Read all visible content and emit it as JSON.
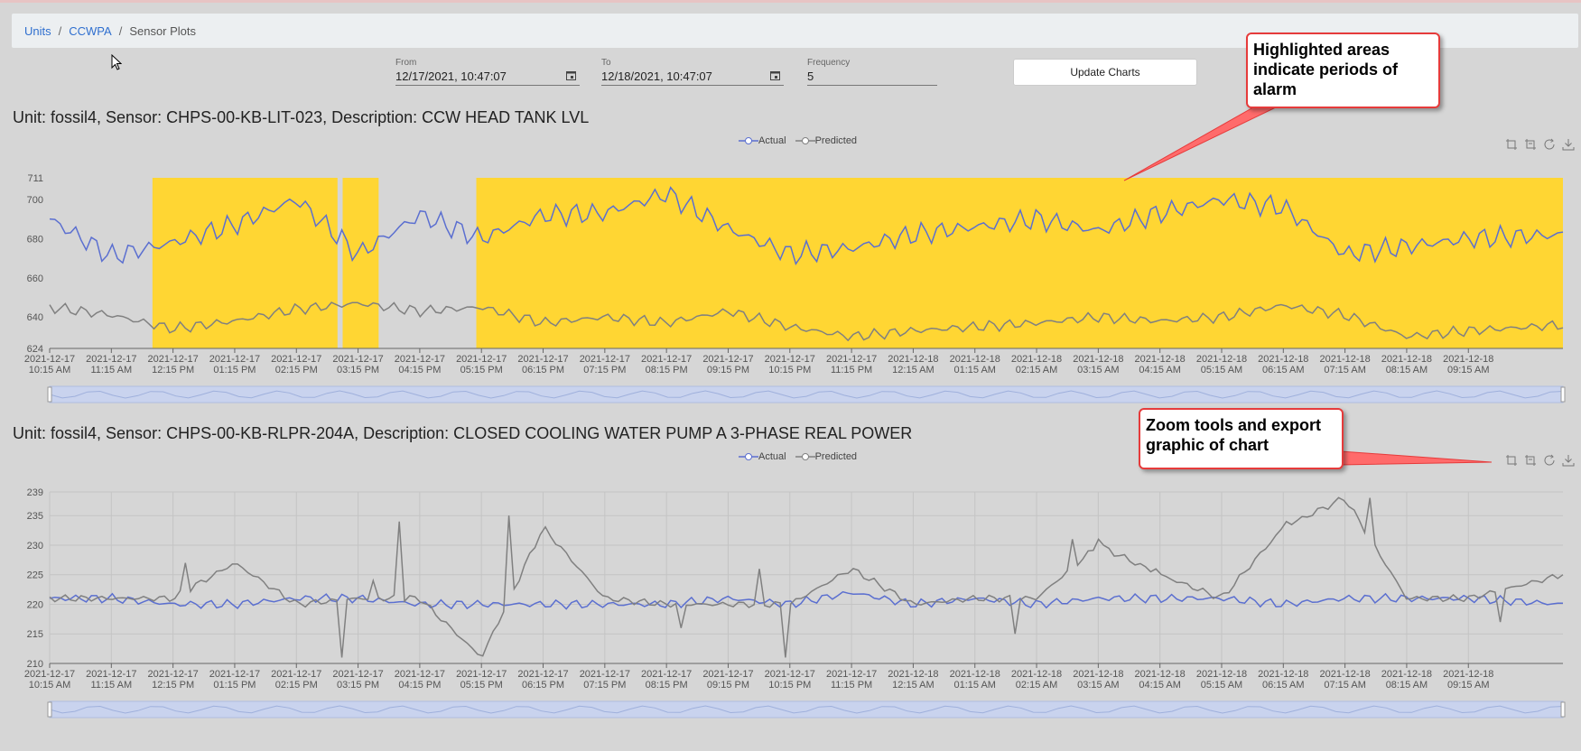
{
  "breadcrumb": {
    "items": [
      "Units",
      "CCWPA"
    ],
    "current": "Sensor Plots"
  },
  "filters": {
    "from_label": "From",
    "from_value": "12/17/2021, 10:47:07",
    "to_label": "To",
    "to_value": "12/18/2021, 10:47:07",
    "frequency_label": "Frequency",
    "frequency_value": "5",
    "update_label": "Update Charts"
  },
  "legend": {
    "actual": "Actual",
    "predicted": "Predicted"
  },
  "colors": {
    "actual": "#5b6fd0",
    "predicted": "#808080",
    "alarm": "#ffd633",
    "callout_border": "#e63b3b"
  },
  "x_tick_labels": [
    [
      "2021-12-17",
      "10:15 AM"
    ],
    [
      "2021-12-17",
      "11:15 AM"
    ],
    [
      "2021-12-17",
      "12:15 PM"
    ],
    [
      "2021-12-17",
      "01:15 PM"
    ],
    [
      "2021-12-17",
      "02:15 PM"
    ],
    [
      "2021-12-17",
      "03:15 PM"
    ],
    [
      "2021-12-17",
      "04:15 PM"
    ],
    [
      "2021-12-17",
      "05:15 PM"
    ],
    [
      "2021-12-17",
      "06:15 PM"
    ],
    [
      "2021-12-17",
      "07:15 PM"
    ],
    [
      "2021-12-17",
      "08:15 PM"
    ],
    [
      "2021-12-17",
      "09:15 PM"
    ],
    [
      "2021-12-17",
      "10:15 PM"
    ],
    [
      "2021-12-17",
      "11:15 PM"
    ],
    [
      "2021-12-18",
      "12:15 AM"
    ],
    [
      "2021-12-18",
      "01:15 AM"
    ],
    [
      "2021-12-18",
      "02:15 AM"
    ],
    [
      "2021-12-18",
      "03:15 AM"
    ],
    [
      "2021-12-18",
      "04:15 AM"
    ],
    [
      "2021-12-18",
      "05:15 AM"
    ],
    [
      "2021-12-18",
      "06:15 AM"
    ],
    [
      "2021-12-18",
      "07:15 AM"
    ],
    [
      "2021-12-18",
      "08:15 AM"
    ],
    [
      "2021-12-18",
      "09:15 AM"
    ]
  ],
  "chart1": {
    "title": "Unit: fossil4, Sensor: CHPS-00-KB-LIT-023, Description: CCW HEAD TANK LVL"
  },
  "chart2": {
    "title": "Unit: fossil4, Sensor: CHPS-00-KB-RLPR-204A, Description: CLOSED COOLING WATER PUMP A 3-PHASE REAL POWER"
  },
  "callouts": {
    "alarm": "Highlighted areas indicate periods of alarm",
    "tools": "Zoom tools and export graphic of chart"
  },
  "chart_data": [
    {
      "type": "line",
      "title": "Unit: fossil4, Sensor: CHPS-00-KB-LIT-023, Description: CCW HEAD TANK LVL",
      "ylim": [
        624,
        711
      ],
      "yticks": [
        624,
        640,
        660,
        680,
        700,
        711
      ],
      "xlim": [
        "2021-12-17 10:15",
        "2021-12-18 10:47"
      ],
      "grid": false,
      "legend": "top-center",
      "alarm_periods": [
        [
          "2021-12-17 11:55",
          "2021-12-17 14:55"
        ],
        [
          "2021-12-17 15:00",
          "2021-12-17 15:35"
        ],
        [
          "2021-12-17 17:10",
          "2021-12-18 10:47"
        ]
      ],
      "x": [
        "10:15",
        "11:15",
        "12:15",
        "13:15",
        "14:15",
        "15:15",
        "16:15",
        "17:15",
        "18:15",
        "19:15",
        "20:15",
        "21:15",
        "22:15",
        "23:15",
        "00:15",
        "01:15",
        "02:15",
        "03:15",
        "04:15",
        "05:15",
        "06:15",
        "07:15",
        "08:15",
        "09:15",
        "10:47"
      ],
      "series": [
        {
          "name": "Actual",
          "values": [
            690,
            671,
            678,
            687,
            700,
            672,
            692,
            680,
            692,
            693,
            703,
            685,
            672,
            675,
            682,
            686,
            690,
            684,
            693,
            700,
            696,
            672,
            676,
            680,
            682
          ]
        },
        {
          "name": "Predicted",
          "values": [
            645,
            641,
            634,
            638,
            644,
            647,
            643,
            645,
            637,
            640,
            637,
            643,
            635,
            630,
            633,
            635,
            637,
            640,
            638,
            640,
            646,
            641,
            630,
            633,
            636
          ]
        }
      ]
    },
    {
      "type": "line",
      "title": "Unit: fossil4, Sensor: CHPS-00-KB-RLPR-204A, Description: CLOSED COOLING WATER PUMP A 3-PHASE REAL POWER",
      "ylim": [
        210,
        239
      ],
      "yticks": [
        210,
        215,
        220,
        225,
        230,
        235,
        239
      ],
      "xlim": [
        "2021-12-17 10:15",
        "2021-12-18 10:47"
      ],
      "grid": true,
      "legend": "top-center",
      "x": [
        "10:15",
        "11:15",
        "12:15",
        "13:15",
        "14:15",
        "15:15",
        "16:15",
        "17:15",
        "18:15",
        "19:15",
        "20:15",
        "21:15",
        "22:15",
        "23:15",
        "00:15",
        "01:15",
        "02:15",
        "03:15",
        "04:15",
        "05:15",
        "06:15",
        "07:15",
        "08:15",
        "09:15",
        "10:47"
      ],
      "series": [
        {
          "name": "Actual",
          "values": [
            221,
            221,
            220,
            220,
            221,
            221,
            220,
            220,
            220,
            220,
            220,
            221,
            220,
            222,
            220,
            221,
            220,
            221,
            221,
            221,
            220,
            221,
            221,
            221,
            220
          ]
        },
        {
          "name": "Predicted",
          "values": [
            221,
            221,
            221,
            227,
            220,
            221,
            221,
            211,
            233,
            221,
            220,
            220,
            220,
            226,
            220,
            221,
            221,
            230,
            225,
            221,
            233,
            238,
            221,
            221,
            225
          ]
        }
      ]
    }
  ]
}
